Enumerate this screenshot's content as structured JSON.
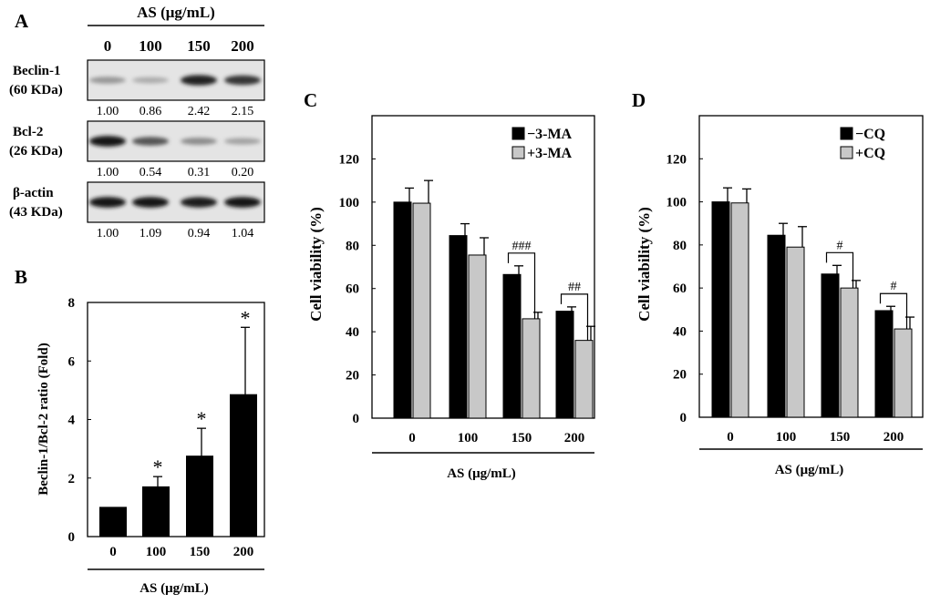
{
  "panel_labels": {
    "a": "A",
    "b": "B",
    "c": "C",
    "d": "D"
  },
  "blot": {
    "header": "AS (μg/mL)",
    "lanes": [
      "0",
      "100",
      "150",
      "200"
    ],
    "rows": [
      {
        "name": "Beclin-1",
        "kda": "(60 KDa)",
        "values": [
          "1.00",
          "0.86",
          "2.42",
          "2.15"
        ],
        "intensity": [
          0.35,
          0.25,
          0.9,
          0.8
        ]
      },
      {
        "name": "Bcl-2",
        "kda": "(26 KDa)",
        "values": [
          "1.00",
          "0.54",
          "0.31",
          "0.20"
        ],
        "intensity": [
          0.95,
          0.65,
          0.4,
          0.3
        ]
      },
      {
        "name": "β-actin",
        "kda": "(43 KDa)",
        "values": [
          "1.00",
          "1.09",
          "0.94",
          "1.04"
        ],
        "intensity": [
          0.95,
          0.95,
          0.92,
          0.95
        ]
      }
    ]
  },
  "chart_data": [
    {
      "id": "B",
      "type": "bar",
      "ylabel": "Beclin-1/Bcl-2 ratio (Fold)",
      "xlabel": "AS (μg/mL)",
      "categories": [
        "0",
        "100",
        "150",
        "200"
      ],
      "ylim": [
        0,
        8
      ],
      "yticks": [
        0,
        2,
        4,
        6,
        8
      ],
      "series": [
        {
          "name": "ratio",
          "values": [
            1.0,
            1.7,
            2.75,
            4.85
          ],
          "errors": [
            0,
            0.35,
            0.95,
            2.3
          ],
          "color": "#000000"
        }
      ],
      "annotations": [
        "",
        "*",
        "*",
        "*"
      ]
    },
    {
      "id": "C",
      "type": "bar",
      "ylabel": "Cell viability  (%)",
      "xlabel": "AS (μg/mL)",
      "categories": [
        "0",
        "100",
        "150",
        "200"
      ],
      "ylim": [
        0,
        140
      ],
      "yticks": [
        0,
        20,
        40,
        60,
        80,
        100,
        120
      ],
      "series": [
        {
          "name": "−3-MA",
          "values": [
            100,
            84.5,
            66.5,
            49.5
          ],
          "errors": [
            6.5,
            5.5,
            4,
            2
          ],
          "color": "#000000"
        },
        {
          "name": "+3-MA",
          "values": [
            99.5,
            75.5,
            46,
            36
          ],
          "errors": [
            10.5,
            8,
            3,
            6.5
          ],
          "color": "#c8c8c8"
        }
      ],
      "legend": [
        "−3-MA",
        "+3-MA"
      ],
      "sig": [
        {
          "cat": 2,
          "label": "###"
        },
        {
          "cat": 3,
          "label": "##"
        }
      ]
    },
    {
      "id": "D",
      "type": "bar",
      "ylabel": "Cell viability  (%)",
      "xlabel": "AS (μg/mL)",
      "categories": [
        "0",
        "100",
        "150",
        "200"
      ],
      "ylim": [
        0,
        140
      ],
      "yticks": [
        0,
        20,
        40,
        60,
        80,
        100,
        120
      ],
      "series": [
        {
          "name": "−CQ",
          "values": [
            100,
            84.5,
            66.5,
            49.5
          ],
          "errors": [
            6.5,
            5.5,
            4,
            2
          ],
          "color": "#000000"
        },
        {
          "name": "+CQ",
          "values": [
            99.5,
            79,
            60,
            41
          ],
          "errors": [
            6.5,
            9.5,
            3.5,
            5.5
          ],
          "color": "#c8c8c8"
        }
      ],
      "legend": [
        "−CQ",
        "+CQ"
      ],
      "sig": [
        {
          "cat": 2,
          "label": "#"
        },
        {
          "cat": 3,
          "label": "#"
        }
      ]
    }
  ]
}
